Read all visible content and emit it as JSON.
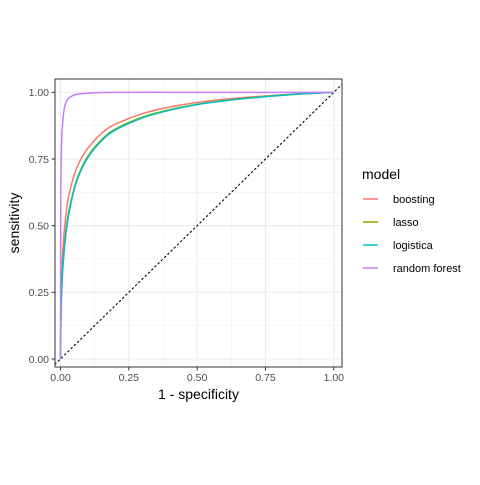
{
  "chart_data": {
    "type": "line",
    "title": "",
    "xlabel": "1 - specificity",
    "ylabel": "sensitivity",
    "xlim": [
      -0.02,
      1.03
    ],
    "ylim": [
      -0.03,
      1.05
    ],
    "x_ticks": [
      0.0,
      0.25,
      0.5,
      0.75,
      1.0
    ],
    "y_ticks": [
      0.0,
      0.25,
      0.5,
      0.75,
      1.0
    ],
    "x_tick_labels": [
      "0.00",
      "0.25",
      "0.50",
      "0.75",
      "1.00"
    ],
    "y_tick_labels": [
      "0.00",
      "0.25",
      "0.50",
      "0.75",
      "1.00"
    ],
    "grid": true,
    "legend": {
      "title": "model",
      "placement": "right"
    },
    "reference_line": {
      "style": "dotted",
      "from": [
        0,
        0
      ],
      "to": [
        1,
        1
      ]
    },
    "series": [
      {
        "name": "boosting",
        "color": "#F8766D",
        "x": [
          0,
          0.002,
          0.005,
          0.01,
          0.02,
          0.03,
          0.05,
          0.07,
          0.1,
          0.15,
          0.2,
          0.3,
          0.4,
          0.5,
          0.6,
          0.7,
          0.8,
          0.9,
          1.0
        ],
        "y": [
          0,
          0.22,
          0.33,
          0.43,
          0.54,
          0.61,
          0.69,
          0.74,
          0.79,
          0.846,
          0.88,
          0.92,
          0.945,
          0.962,
          0.974,
          0.983,
          0.99,
          0.996,
          1.0
        ]
      },
      {
        "name": "lasso",
        "color": "#7CAE00",
        "x": [
          0,
          0.002,
          0.005,
          0.01,
          0.02,
          0.03,
          0.05,
          0.07,
          0.1,
          0.15,
          0.2,
          0.3,
          0.4,
          0.5,
          0.6,
          0.7,
          0.8,
          0.9,
          1.0
        ],
        "y": [
          0,
          0.18,
          0.28,
          0.37,
          0.48,
          0.55,
          0.64,
          0.7,
          0.76,
          0.822,
          0.862,
          0.907,
          0.935,
          0.955,
          0.969,
          0.98,
          0.988,
          0.995,
          1.0
        ]
      },
      {
        "name": "logistica",
        "color": "#00BFC4",
        "x": [
          0,
          0.002,
          0.005,
          0.01,
          0.02,
          0.03,
          0.05,
          0.07,
          0.1,
          0.15,
          0.2,
          0.3,
          0.4,
          0.5,
          0.6,
          0.7,
          0.8,
          0.9,
          1.0
        ],
        "y": [
          0,
          0.17,
          0.27,
          0.36,
          0.47,
          0.54,
          0.635,
          0.695,
          0.755,
          0.818,
          0.858,
          0.904,
          0.933,
          0.954,
          0.968,
          0.979,
          0.988,
          0.995,
          1.0
        ]
      },
      {
        "name": "random forest",
        "color": "#C77CFF",
        "x": [
          0,
          0.001,
          0.002,
          0.004,
          0.007,
          0.01,
          0.015,
          0.02,
          0.03,
          0.05,
          0.08,
          0.12,
          0.2,
          0.4,
          0.6,
          0.8,
          1.0
        ],
        "y": [
          0,
          0.55,
          0.7,
          0.81,
          0.87,
          0.91,
          0.945,
          0.962,
          0.978,
          0.99,
          0.995,
          0.998,
          1.0,
          1.0,
          1.0,
          1.0,
          1.0
        ]
      }
    ]
  }
}
